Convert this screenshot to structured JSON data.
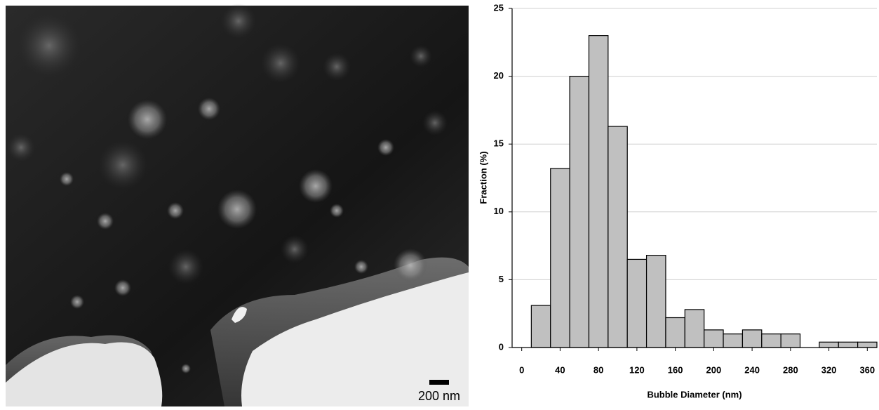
{
  "micrograph": {
    "scale_bar_label": "200 nm"
  },
  "chart_data": {
    "type": "histogram",
    "x_label": "Bubble Diameter (nm)",
    "y_label": "Fraction (%)",
    "bins": [
      10,
      30,
      50,
      70,
      90,
      110,
      130,
      150,
      170,
      190,
      210,
      230,
      250,
      270,
      290,
      310,
      330,
      350,
      370
    ],
    "values": [
      3.1,
      13.2,
      20,
      23,
      16.3,
      6.5,
      6.8,
      2.2,
      2.8,
      1.3,
      1.0,
      1.3,
      1.0,
      1.0,
      0,
      0.4,
      0.4,
      0.4
    ],
    "color": "#c0c0c0",
    "xlim": [
      -10,
      370
    ],
    "xticks": [
      0,
      40,
      80,
      120,
      160,
      200,
      240,
      280,
      320,
      360
    ],
    "ylim": [
      0,
      25
    ],
    "yticks": [
      0,
      5,
      10,
      15,
      20,
      25
    ],
    "grid": true
  }
}
